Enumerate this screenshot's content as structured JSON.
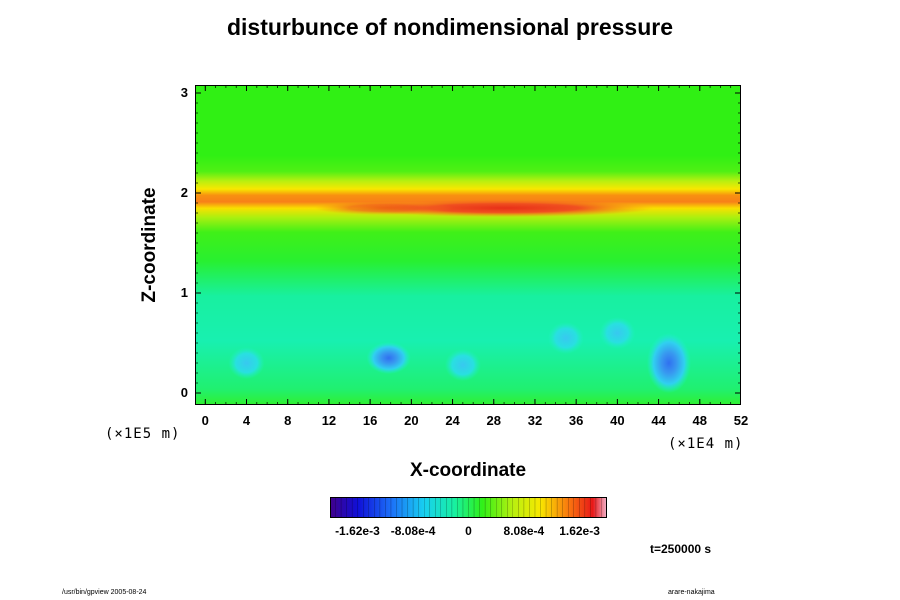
{
  "title": "disturbunce of nondimensional pressure",
  "chart_data": {
    "type": "heatmap",
    "title": "disturbunce of nondimensional pressure",
    "xlabel": "X-coordinate",
    "ylabel": "Z-coordinate",
    "xlim": [
      -1,
      52
    ],
    "ylim": [
      -0.12,
      3.08
    ],
    "x_ticks": [
      "0",
      "4",
      "8",
      "12",
      "16",
      "20",
      "24",
      "28",
      "32",
      "36",
      "40",
      "44",
      "48",
      "52"
    ],
    "y_ticks": [
      "0",
      "1",
      "2",
      "3"
    ],
    "x_scale_note": "(×1E4 m)",
    "y_scale_note": "(×1E5 m)",
    "colorbar": {
      "min": -0.00202,
      "max": 0.00202,
      "ticks": [
        "-1.62e-3",
        "-8.08e-4",
        "0",
        "8.08e-4",
        "1.62e-3"
      ],
      "tick_values": [
        -0.00162,
        -0.000808,
        0,
        0.000808,
        0.00162
      ]
    },
    "features": [
      {
        "kind": "positive_band",
        "z": 1.85,
        "x_range": [
          -1,
          52
        ],
        "peak_x": 29,
        "peak_value": 0.0016
      },
      {
        "kind": "negative_cell",
        "x": 45,
        "z": 0.3,
        "value": -0.0012
      },
      {
        "kind": "negative_cell",
        "x": 17.8,
        "z": 0.35,
        "value": -0.0009
      },
      {
        "kind": "negative_cell",
        "x": 4,
        "z": 0.3,
        "value": -0.0006
      },
      {
        "kind": "negative_cell",
        "x": 25,
        "z": 0.28,
        "value": -0.0005
      },
      {
        "kind": "negative_cell",
        "x": 35,
        "z": 0.55,
        "value": -0.0005
      },
      {
        "kind": "negative_cell",
        "x": 40,
        "z": 0.6,
        "value": -0.0004
      }
    ]
  },
  "time_label": "t=250000 s",
  "footer_left": "/usr/bin/gpview 2005-08-24",
  "footer_right": "arare-nakajima"
}
